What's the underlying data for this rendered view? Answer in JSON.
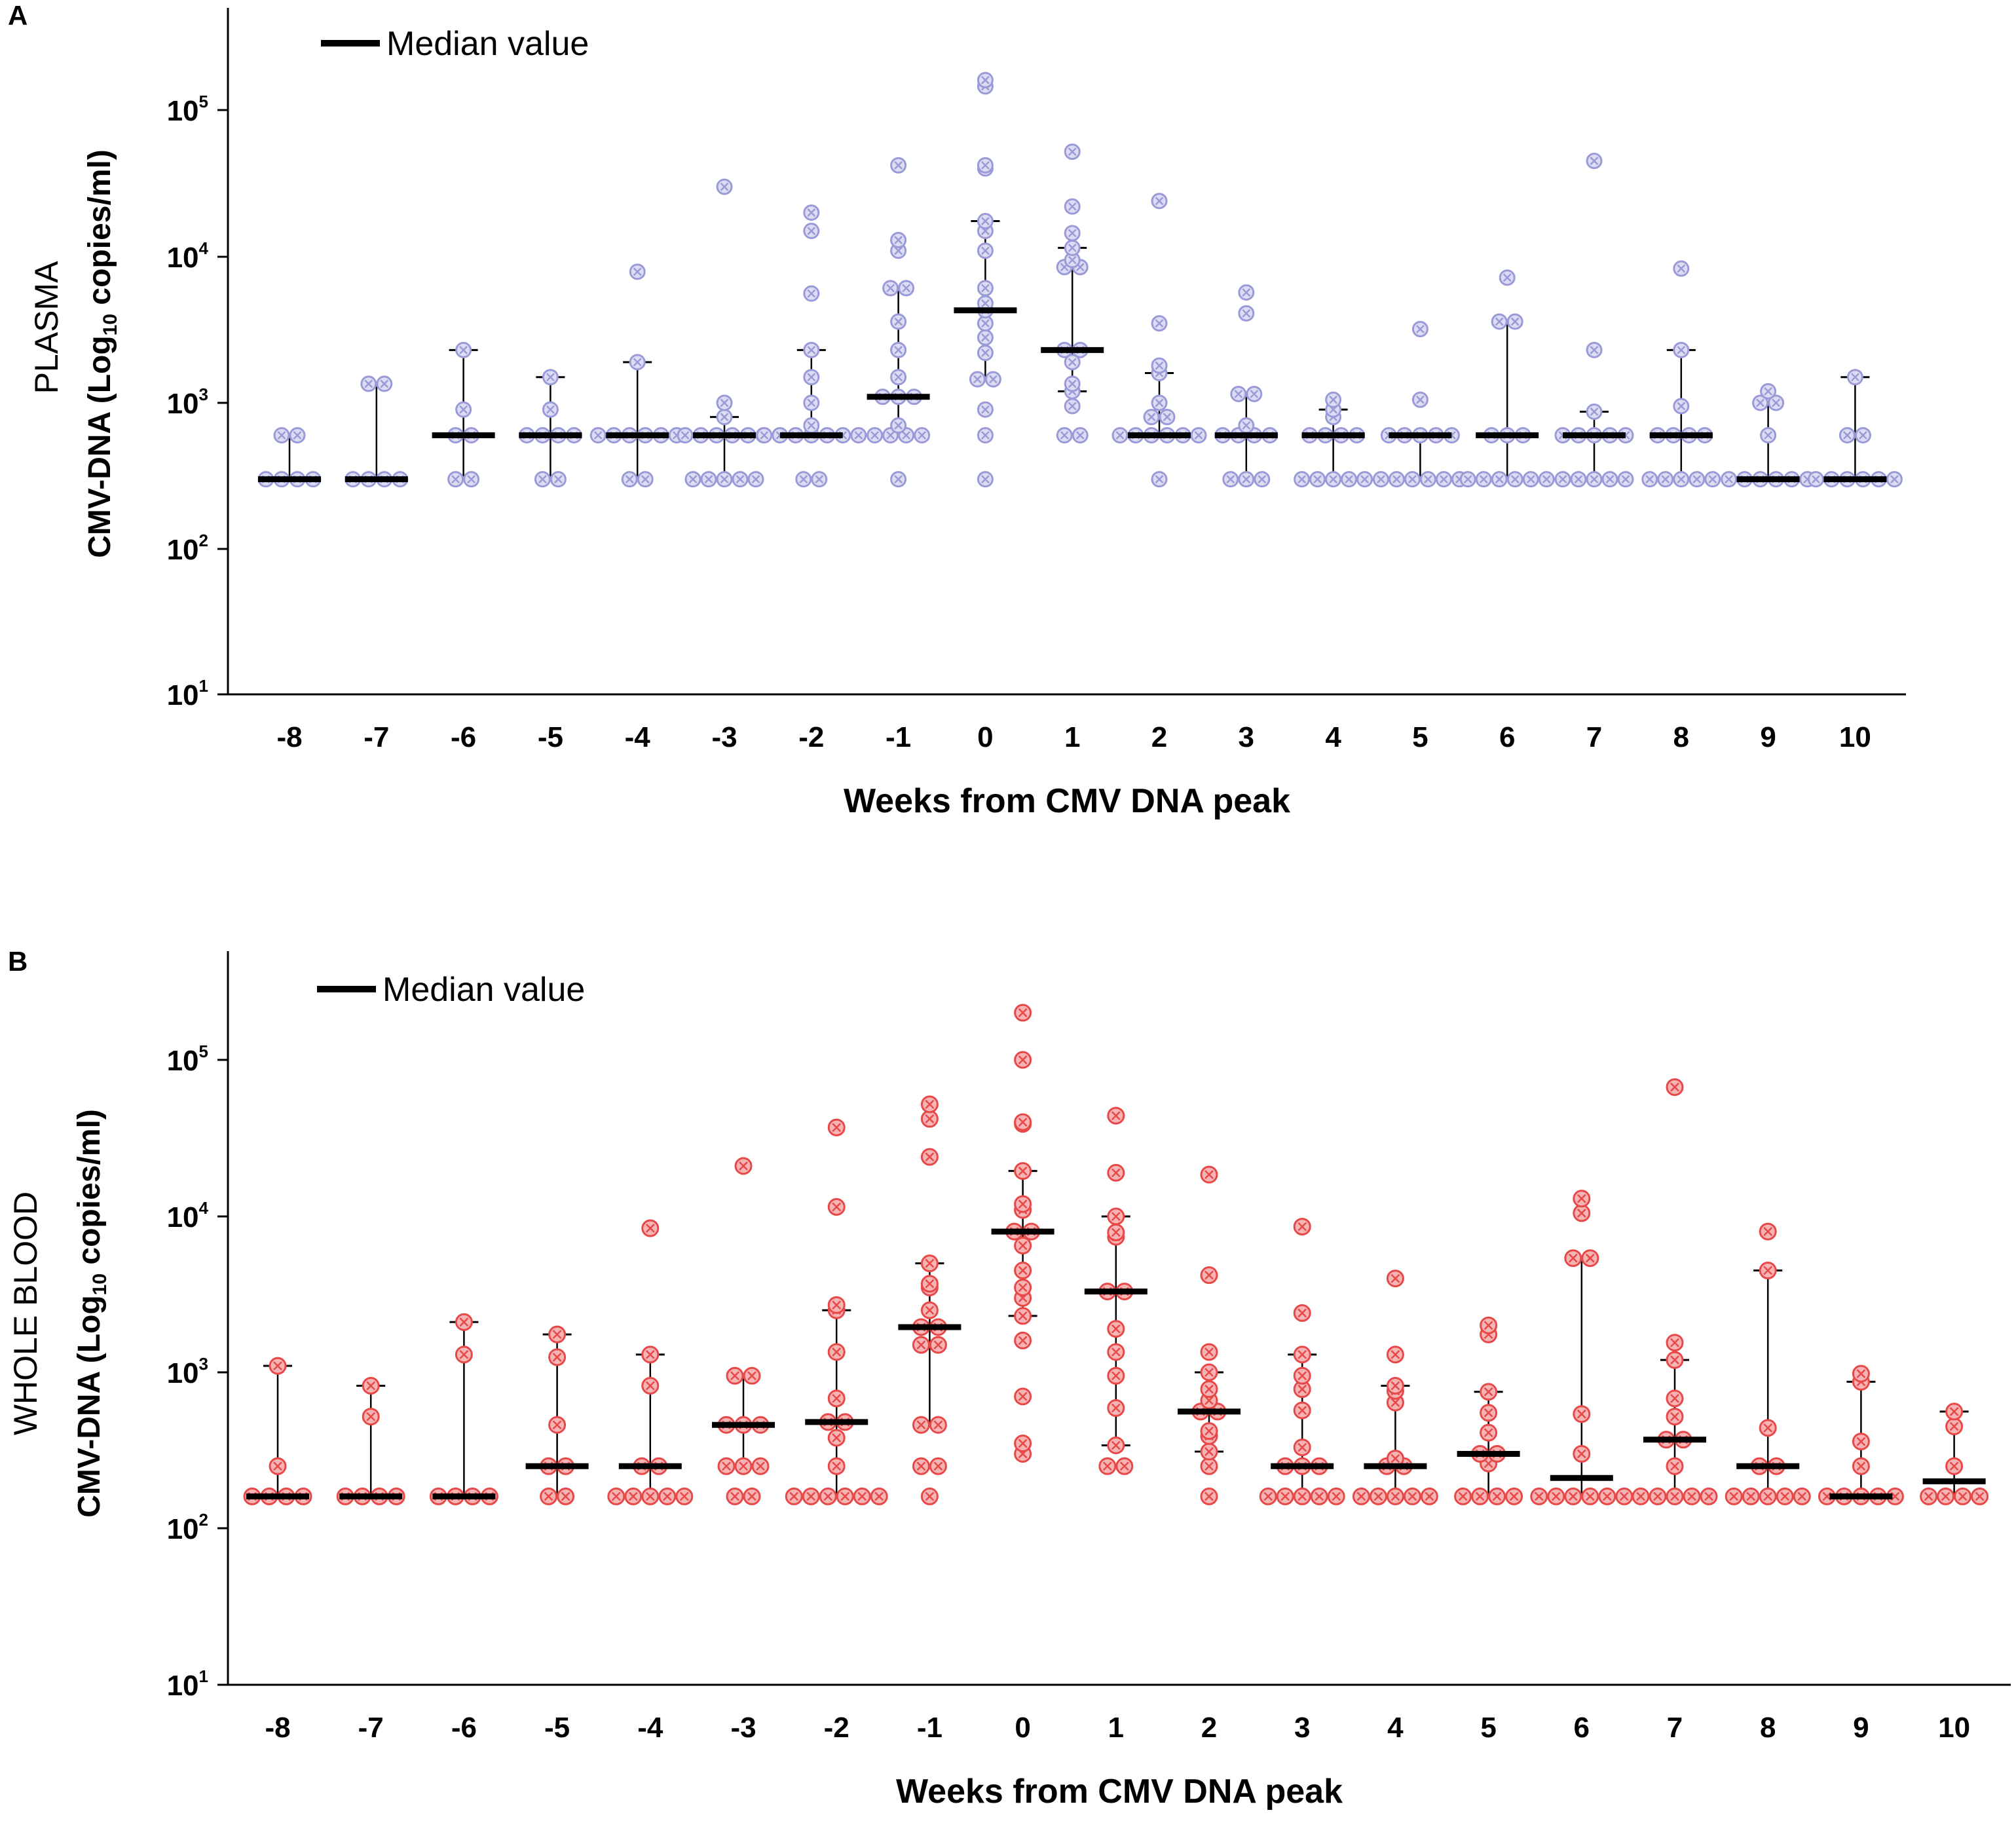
{
  "chart_data": [
    {
      "type": "scatter",
      "panel_label": "A",
      "group_label": "PLASMA",
      "ylabel": "CMV-DNA (Log10 copies/ml)",
      "ylabel_parts": {
        "before": "CMV-DNA (Log",
        "sub": "10",
        "after": " copies/ml)"
      },
      "xlabel": "Weeks from CMV DNA peak",
      "yscale": "log",
      "ylim": [
        10,
        400000
      ],
      "yticks": [
        {
          "base": "10",
          "exp": "1",
          "value": 10
        },
        {
          "base": "10",
          "exp": "2",
          "value": 100
        },
        {
          "base": "10",
          "exp": "3",
          "value": 1000
        },
        {
          "base": "10",
          "exp": "4",
          "value": 10000
        },
        {
          "base": "10",
          "exp": "5",
          "value": 100000
        }
      ],
      "categories": [
        "-8",
        "-7",
        "-6",
        "-5",
        "-4",
        "-3",
        "-2",
        "-1",
        "0",
        "1",
        "2",
        "3",
        "4",
        "5",
        "6",
        "7",
        "8",
        "9",
        "10"
      ],
      "legend": "Median value",
      "point_color": "#9a9ad8",
      "point_fill": "#dcdcf2",
      "groups": [
        {
          "week": "-8",
          "median": 300,
          "q1": 300,
          "q3": 600,
          "points": [
            300,
            300,
            300,
            300,
            600,
            600
          ]
        },
        {
          "week": "-7",
          "median": 300,
          "q1": 300,
          "q3": 1350,
          "points": [
            300,
            300,
            300,
            300,
            1350,
            1350
          ]
        },
        {
          "week": "-6",
          "median": 600,
          "q1": 300,
          "q3": 2300,
          "points": [
            300,
            300,
            600,
            600,
            900,
            2300
          ]
        },
        {
          "week": "-5",
          "median": 600,
          "q1": 300,
          "q3": 1500,
          "points": [
            300,
            300,
            600,
            600,
            600,
            600,
            900,
            1500
          ]
        },
        {
          "week": "-4",
          "median": 600,
          "q1": 300,
          "q3": 1900,
          "points": [
            300,
            300,
            600,
            600,
            600,
            600,
            600,
            600,
            1900,
            7900
          ]
        },
        {
          "week": "-3",
          "median": 600,
          "q1": 300,
          "q3": 800,
          "points": [
            300,
            300,
            300,
            300,
            300,
            600,
            600,
            600,
            600,
            600,
            600,
            800,
            1000,
            30000
          ]
        },
        {
          "week": "-2",
          "median": 600,
          "q1": 600,
          "q3": 2300,
          "points": [
            300,
            300,
            600,
            600,
            600,
            600,
            600,
            600,
            600,
            700,
            1000,
            1500,
            2300,
            5600,
            15000,
            20000
          ]
        },
        {
          "week": "-1",
          "median": 1100,
          "q1": 600,
          "q3": 6100,
          "points": [
            300,
            600,
            600,
            600,
            600,
            700,
            1100,
            1100,
            1100,
            1500,
            2300,
            3600,
            6100,
            6100,
            11000,
            13000,
            42000
          ]
        },
        {
          "week": "0",
          "median": 4300,
          "q1": 1450,
          "q3": 17500,
          "points": [
            300,
            600,
            900,
            1450,
            1450,
            2200,
            2800,
            3500,
            4300,
            4800,
            6100,
            11000,
            15000,
            17500,
            40000,
            42000,
            145000,
            160000
          ]
        },
        {
          "week": "1",
          "median": 2300,
          "q1": 1200,
          "q3": 11500,
          "points": [
            600,
            600,
            950,
            1200,
            1350,
            1900,
            2300,
            2300,
            8500,
            8500,
            9500,
            11500,
            14500,
            22000,
            52000
          ]
        },
        {
          "week": "2",
          "median": 600,
          "q1": 600,
          "q3": 1600,
          "points": [
            300,
            600,
            600,
            600,
            600,
            600,
            600,
            800,
            800,
            1000,
            1600,
            1800,
            3500,
            24000
          ]
        },
        {
          "week": "3",
          "median": 600,
          "q1": 300,
          "q3": 1150,
          "points": [
            300,
            300,
            300,
            600,
            600,
            600,
            600,
            700,
            1150,
            1150,
            4100,
            5700
          ]
        },
        {
          "week": "4",
          "median": 600,
          "q1": 300,
          "q3": 900,
          "points": [
            300,
            300,
            300,
            300,
            300,
            600,
            600,
            600,
            600,
            800,
            900,
            1050
          ]
        },
        {
          "week": "5",
          "median": 600,
          "q1": 300,
          "q3": 600,
          "points": [
            300,
            300,
            300,
            300,
            300,
            300,
            600,
            600,
            600,
            600,
            600,
            1050,
            3200
          ]
        },
        {
          "week": "6",
          "median": 600,
          "q1": 300,
          "q3": 3600,
          "points": [
            300,
            300,
            300,
            300,
            300,
            300,
            600,
            600,
            600,
            3600,
            3600,
            7200
          ]
        },
        {
          "week": "7",
          "median": 600,
          "q1": 300,
          "q3": 870,
          "points": [
            300,
            300,
            300,
            300,
            300,
            600,
            600,
            600,
            600,
            600,
            870,
            2300,
            45000
          ]
        },
        {
          "week": "8",
          "median": 600,
          "q1": 300,
          "q3": 2300,
          "points": [
            300,
            300,
            300,
            300,
            300,
            600,
            600,
            600,
            600,
            950,
            2300,
            8300
          ]
        },
        {
          "week": "9",
          "median": 300,
          "q1": 300,
          "q3": 1000,
          "points": [
            300,
            300,
            300,
            300,
            300,
            300,
            600,
            1000,
            1000,
            1200
          ]
        },
        {
          "week": "10",
          "median": 300,
          "q1": 300,
          "q3": 1500,
          "points": [
            300,
            300,
            300,
            300,
            300,
            300,
            600,
            600,
            1500
          ]
        }
      ]
    },
    {
      "type": "scatter",
      "panel_label": "B",
      "group_label": "WHOLE BLOOD",
      "ylabel": "CMV-DNA (Log10 copies/ml)",
      "ylabel_parts": {
        "before": "CMV-DNA (Log",
        "sub": "10",
        "after": " copies/ml)"
      },
      "xlabel": "Weeks from CMV DNA peak",
      "yscale": "log",
      "ylim": [
        10,
        400000
      ],
      "yticks": [
        {
          "base": "10",
          "exp": "1",
          "value": 10
        },
        {
          "base": "10",
          "exp": "2",
          "value": 100
        },
        {
          "base": "10",
          "exp": "3",
          "value": 1000
        },
        {
          "base": "10",
          "exp": "4",
          "value": 10000
        },
        {
          "base": "10",
          "exp": "5",
          "value": 100000
        }
      ],
      "categories": [
        "-8",
        "-7",
        "-6",
        "-5",
        "-4",
        "-3",
        "-2",
        "-1",
        "0",
        "1",
        "2",
        "3",
        "4",
        "5",
        "6",
        "7",
        "8",
        "9",
        "10"
      ],
      "legend": "Median value",
      "point_color": "#e74848",
      "point_fill": "#f7b4b4",
      "groups": [
        {
          "week": "-8",
          "median": 160,
          "q1": 160,
          "q3": 1100,
          "points": [
            160,
            160,
            160,
            160,
            250,
            1100
          ]
        },
        {
          "week": "-7",
          "median": 160,
          "q1": 160,
          "q3": 820,
          "points": [
            160,
            160,
            160,
            160,
            520,
            820
          ]
        },
        {
          "week": "-6",
          "median": 160,
          "q1": 160,
          "q3": 2100,
          "points": [
            160,
            160,
            160,
            160,
            1300,
            2100
          ]
        },
        {
          "week": "-5",
          "median": 250,
          "q1": 160,
          "q3": 1750,
          "points": [
            160,
            160,
            250,
            250,
            460,
            1250,
            1750
          ]
        },
        {
          "week": "-4",
          "median": 250,
          "q1": 160,
          "q3": 1300,
          "points": [
            160,
            160,
            160,
            160,
            160,
            250,
            250,
            820,
            1300,
            8400
          ]
        },
        {
          "week": "-3",
          "median": 460,
          "q1": 250,
          "q3": 950,
          "points": [
            160,
            160,
            250,
            250,
            250,
            460,
            460,
            460,
            950,
            950,
            21000
          ]
        },
        {
          "week": "-2",
          "median": 480,
          "q1": 160,
          "q3": 2500,
          "points": [
            160,
            160,
            160,
            160,
            160,
            160,
            250,
            380,
            480,
            480,
            680,
            1350,
            2500,
            2700,
            11500,
            37000
          ]
        },
        {
          "week": "-1",
          "median": 1950,
          "q1": 460,
          "q3": 5000,
          "points": [
            160,
            250,
            250,
            460,
            460,
            1500,
            1500,
            1950,
            1950,
            2500,
            3500,
            3700,
            5000,
            24000,
            42000,
            52000
          ]
        },
        {
          "week": "0",
          "median": 8000,
          "q1": 2300,
          "q3": 19500,
          "points": [
            300,
            350,
            700,
            1600,
            2300,
            3000,
            3500,
            4500,
            6500,
            8000,
            8000,
            11000,
            12000,
            19500,
            39000,
            40000,
            100000,
            200000
          ]
        },
        {
          "week": "1",
          "median": 3300,
          "q1": 340,
          "q3": 10000,
          "points": [
            250,
            250,
            340,
            590,
            950,
            1350,
            1900,
            3300,
            3300,
            7400,
            7900,
            10000,
            19000,
            44000
          ]
        },
        {
          "week": "2",
          "median": 560,
          "q1": 310,
          "q3": 1000,
          "points": [
            160,
            250,
            310,
            390,
            420,
            560,
            560,
            660,
            780,
            1000,
            1350,
            4200,
            18500
          ]
        },
        {
          "week": "3",
          "median": 250,
          "q1": 160,
          "q3": 1300,
          "points": [
            160,
            160,
            160,
            160,
            160,
            250,
            250,
            250,
            330,
            570,
            780,
            950,
            1300,
            2400,
            8600
          ]
        },
        {
          "week": "4",
          "median": 250,
          "q1": 160,
          "q3": 820,
          "points": [
            160,
            160,
            160,
            160,
            160,
            250,
            250,
            280,
            640,
            760,
            820,
            1300,
            4000
          ]
        },
        {
          "week": "5",
          "median": 300,
          "q1": 160,
          "q3": 750,
          "points": [
            160,
            160,
            160,
            160,
            260,
            300,
            300,
            410,
            550,
            750,
            1750,
            2000
          ]
        },
        {
          "week": "6",
          "median": 210,
          "q1": 160,
          "q3": 5400,
          "points": [
            160,
            160,
            160,
            160,
            160,
            160,
            300,
            540,
            5400,
            5400,
            10500,
            13000
          ]
        },
        {
          "week": "7",
          "median": 370,
          "q1": 160,
          "q3": 1200,
          "points": [
            160,
            160,
            160,
            160,
            160,
            250,
            370,
            370,
            520,
            680,
            1200,
            1550,
            67000
          ]
        },
        {
          "week": "8",
          "median": 250,
          "q1": 160,
          "q3": 4500,
          "points": [
            160,
            160,
            160,
            160,
            160,
            250,
            250,
            440,
            4500,
            8000
          ]
        },
        {
          "week": "9",
          "median": 160,
          "q1": 160,
          "q3": 870,
          "points": [
            160,
            160,
            160,
            160,
            160,
            250,
            360,
            870,
            980
          ]
        },
        {
          "week": "10",
          "median": 200,
          "q1": 160,
          "q3": 560,
          "points": [
            160,
            160,
            160,
            160,
            250,
            450,
            560
          ]
        }
      ]
    }
  ]
}
